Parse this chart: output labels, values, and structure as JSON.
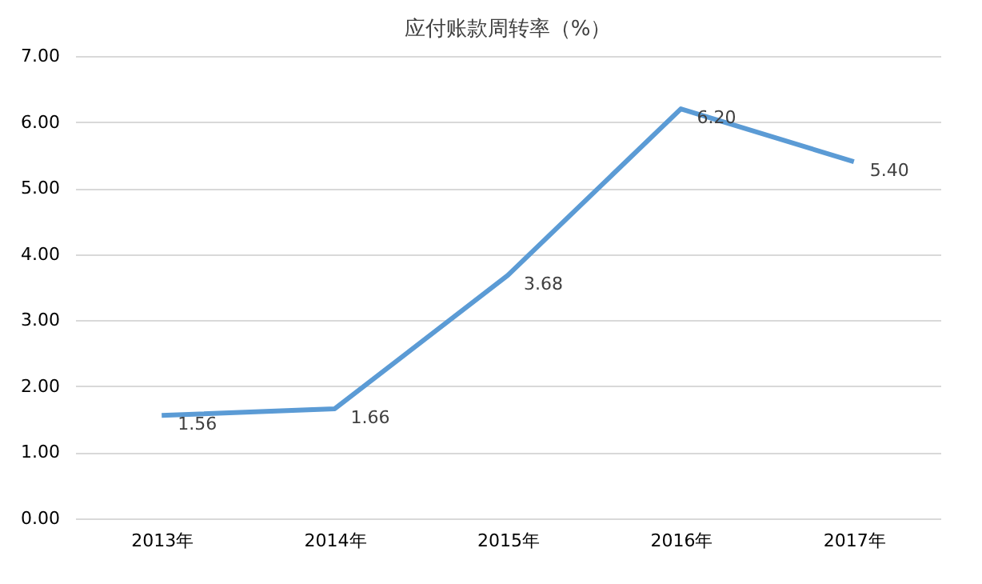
{
  "chart_data": {
    "type": "line",
    "title": "应付账款周转率（%）",
    "categories": [
      "2013年",
      "2014年",
      "2015年",
      "2016年",
      "2017年"
    ],
    "series": [
      {
        "color": "#5b9bd5",
        "values": [
          1.56,
          1.66,
          3.68,
          6.2,
          5.4
        ],
        "value_labels": [
          "1.56",
          "1.66",
          "3.68",
          "6.20",
          "5.40"
        ]
      }
    ],
    "ylim": [
      0,
      7
    ],
    "yticks": [
      {
        "value": 0,
        "label": "0.00"
      },
      {
        "value": 1,
        "label": "1.00"
      },
      {
        "value": 2,
        "label": "2.00"
      },
      {
        "value": 3,
        "label": "3.00"
      },
      {
        "value": 4,
        "label": "4.00"
      },
      {
        "value": 5,
        "label": "5.00"
      },
      {
        "value": 6,
        "label": "6.00"
      },
      {
        "value": 7,
        "label": "7.00"
      }
    ],
    "grid": "y",
    "marker": "none",
    "line_style": "solid"
  }
}
